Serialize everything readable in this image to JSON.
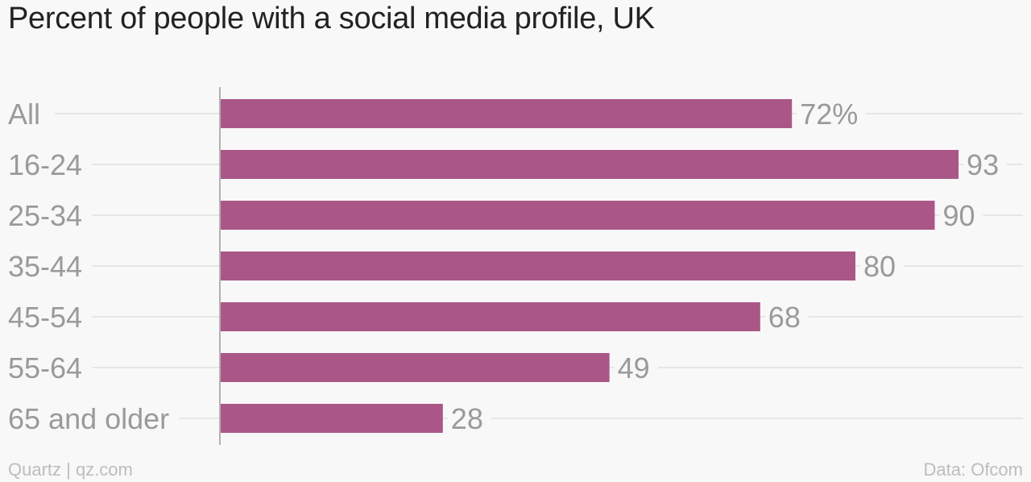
{
  "chart_data": {
    "type": "bar",
    "orientation": "horizontal",
    "title": "Percent of people with a social media profile, UK",
    "categories": [
      "All",
      "16-24",
      "25-34",
      "35-44",
      "45-54",
      "55-64",
      "65 and older"
    ],
    "values": [
      72,
      93,
      90,
      80,
      68,
      49,
      28
    ],
    "value_labels": [
      "72%",
      "93",
      "90",
      "80",
      "68",
      "49",
      "28"
    ],
    "xlim": [
      0,
      100
    ],
    "grid": true,
    "legend": "none",
    "colors": {
      "bar": "#aa5787",
      "gridline": "#e6e6e6",
      "axis": "#9a9a9a",
      "label": "#9a9a9a",
      "title": "#222222",
      "background": "#f8f8f8"
    }
  },
  "footer": {
    "source_left": "Quartz | qz.com",
    "source_right": "Data: Ofcom"
  }
}
